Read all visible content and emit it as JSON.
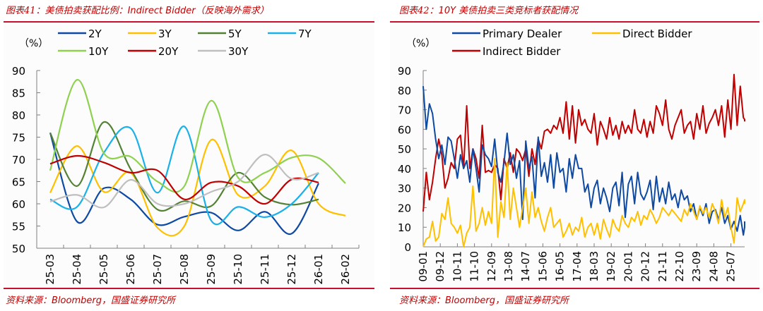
{
  "chart_data": [
    {
      "type": "line",
      "title": "图表41：美债拍卖获配比例：Indirect Bidder（反映海外需求）",
      "source": "资料来源：Bloomberg，国盛证券研究所",
      "unit_label": "（%）",
      "ylim": [
        50,
        90
      ],
      "yticks": [
        "90",
        "85",
        "80",
        "75",
        "70",
        "65",
        "60",
        "55",
        "50"
      ],
      "ytick_values": [
        90,
        85,
        80,
        75,
        70,
        65,
        60,
        55,
        50
      ],
      "categories": [
        "25-03",
        "25-04",
        "25-05",
        "25-06",
        "25-07",
        "25-08",
        "25-09",
        "25-10",
        "25-11",
        "25-12",
        "26-01",
        "26-02"
      ],
      "legend": "top",
      "series": [
        {
          "name": "2Y",
          "color": "#0e4aa3",
          "values": [
            76,
            56,
            63.5,
            61,
            55.3,
            57.1,
            58,
            54,
            58.2,
            53.3,
            64.6,
            null
          ]
        },
        {
          "name": "3Y",
          "color": "#ffc000",
          "values": [
            62.5,
            73,
            62.7,
            67,
            54.6,
            55,
            74.4,
            62,
            64,
            72,
            60,
            57.3
          ]
        },
        {
          "name": "5Y",
          "color": "#548235",
          "values": [
            76,
            64,
            78.4,
            67.8,
            58.7,
            60.6,
            59.5,
            67,
            61.5,
            59.8,
            61,
            null
          ]
        },
        {
          "name": "7Y",
          "color": "#1ab0e8",
          "values": [
            61,
            59.3,
            71.5,
            77,
            62.5,
            77.4,
            56.2,
            59.3,
            57,
            60,
            67,
            null
          ]
        },
        {
          "name": "10Y",
          "color": "#8fd14f",
          "values": [
            67.5,
            87.9,
            71.4,
            70.6,
            65,
            64,
            83.2,
            65.9,
            67,
            70.4,
            70.3,
            64.6
          ]
        },
        {
          "name": "20Y",
          "color": "#c00000",
          "values": [
            69,
            70.8,
            69.3,
            67,
            67.5,
            61,
            64.8,
            64,
            60,
            65.5,
            64.8,
            null
          ]
        },
        {
          "name": "30Y",
          "color": "#bfbfbf",
          "values": [
            60.5,
            62,
            59.2,
            65.4,
            60,
            60,
            62.7,
            65,
            71.1,
            65.6,
            67,
            null
          ]
        }
      ]
    },
    {
      "type": "line",
      "title": "图表42：10Y 美债拍卖三类竞标者获配情况",
      "source": "资料来源：Bloomberg，国盛证券研究所",
      "unit_label": "（%）",
      "ylim": [
        0,
        90
      ],
      "yticks": [
        "90",
        "80",
        "70",
        "60",
        "50",
        "40",
        "30",
        "20",
        "10",
        "0"
      ],
      "ytick_values": [
        90,
        80,
        70,
        60,
        50,
        40,
        30,
        20,
        10,
        0
      ],
      "xticks": [
        "09-01",
        "09-12",
        "10-11",
        "11-10",
        "12-09",
        "13-08",
        "14-07",
        "15-06",
        "16-05",
        "17-04",
        "18-03",
        "19-02",
        "20-01",
        "20-12",
        "21-11",
        "22-10",
        "23-09",
        "24-08",
        "25-07"
      ],
      "x_step_months": 2,
      "legend": "top",
      "series": [
        {
          "name": "Primary Dealer",
          "color": "#0e4aa3",
          "values": [
            82,
            60,
            73,
            68,
            55,
            45,
            52,
            42,
            56,
            54,
            45,
            35,
            47,
            40,
            44,
            33,
            50,
            40,
            28,
            52,
            47,
            45,
            41,
            55,
            38,
            33,
            43,
            58,
            42,
            47,
            35,
            44,
            14,
            54,
            40,
            46,
            25,
            56,
            36,
            43,
            33,
            47,
            30,
            48,
            38,
            40,
            28,
            45,
            35,
            47,
            40,
            40,
            28,
            32,
            20,
            30,
            34,
            22,
            30,
            25,
            18,
            30,
            33,
            21,
            38,
            15,
            32,
            36,
            22,
            38,
            27,
            24,
            28,
            34,
            19,
            36,
            23,
            30,
            22,
            33,
            24,
            27,
            20,
            29,
            24,
            26,
            18,
            22,
            14,
            20,
            16,
            22,
            12,
            18,
            19,
            14,
            20,
            12,
            16,
            9,
            13,
            8,
            16,
            6,
            10,
            13
          ]
        },
        {
          "name": "Direct Bidder",
          "color": "#ffc000",
          "values": [
            0,
            4,
            5,
            13,
            3,
            5,
            17,
            14,
            25,
            12,
            10,
            7,
            11,
            0,
            7,
            10,
            31,
            8,
            12,
            20,
            11,
            18,
            12,
            45,
            5,
            23,
            15,
            43,
            14,
            30,
            20,
            10,
            20,
            30,
            12,
            28,
            15,
            20,
            13,
            8,
            15,
            20,
            10,
            12,
            14,
            5,
            8,
            12,
            6,
            10,
            8,
            15,
            5,
            10,
            12,
            6,
            12,
            4,
            14,
            9,
            5,
            14,
            10,
            8,
            16,
            12,
            10,
            15,
            13,
            18,
            11,
            16,
            14,
            19,
            16,
            12,
            15,
            20,
            18,
            16,
            19,
            17,
            15,
            13,
            19,
            16,
            22,
            18,
            14,
            21,
            17,
            20,
            15,
            22,
            18,
            12,
            24,
            15,
            20,
            10,
            2,
            25,
            18,
            22,
            24,
            22
          ]
        },
        {
          "name": "Indirect Bidder",
          "color": "#c00000",
          "values": [
            18,
            38,
            24,
            33,
            45,
            55,
            47,
            30,
            35,
            43,
            40,
            55,
            57,
            40,
            72,
            40,
            50,
            45,
            35,
            62,
            38,
            39,
            38,
            42,
            40,
            24,
            45,
            40,
            48,
            38,
            50,
            48,
            44,
            50,
            36,
            50,
            42,
            55,
            50,
            59,
            60,
            58,
            62,
            60,
            66,
            58,
            74,
            55,
            72,
            53,
            70,
            62,
            65,
            60,
            58,
            68,
            52,
            64,
            60,
            55,
            66,
            57,
            62,
            55,
            64,
            58,
            62,
            58,
            70,
            60,
            58,
            65,
            56,
            64,
            58,
            72,
            68,
            62,
            75,
            60,
            55,
            62,
            66,
            70,
            58,
            62,
            64,
            55,
            68,
            60,
            72,
            58,
            63,
            66,
            70,
            62,
            72,
            56,
            75,
            60,
            88,
            62,
            82,
            66,
            65,
            64
          ]
        }
      ]
    }
  ],
  "panels": [
    {
      "title_prefix": "图表41：",
      "title_main": "美债拍卖获配比例：",
      "title_en": "Indirect Bidder",
      "title_suffix": "（反映海外需求）",
      "source_prefix": "资料来源：",
      "source_en": "Bloomberg",
      "source_suffix": "，国盛证券研究所"
    },
    {
      "title_prefix": "图表42：",
      "title_en": "10Y",
      "title_main": " 美债拍卖三类竞标者获配情况",
      "source_prefix": "资料来源：",
      "source_en": "Bloomberg",
      "source_suffix": "，国盛证券研究所"
    }
  ]
}
